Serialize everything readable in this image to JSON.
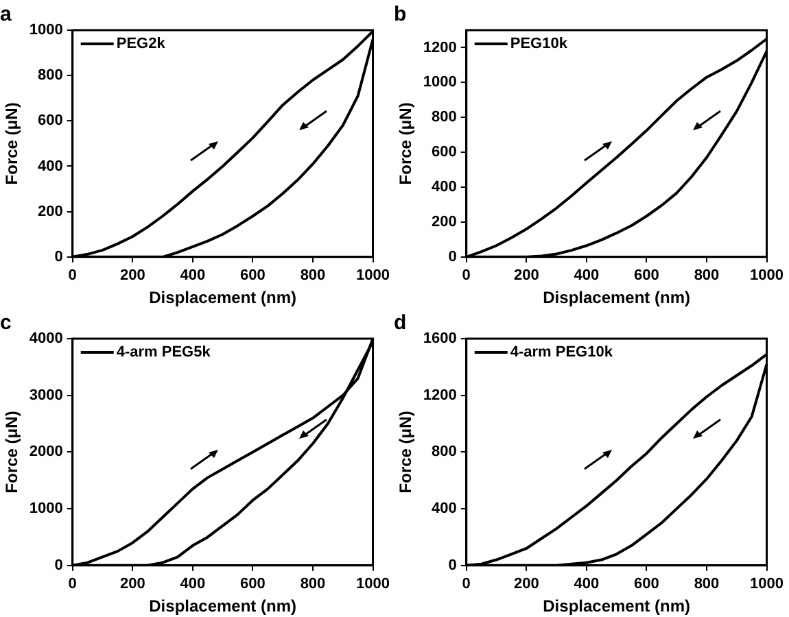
{
  "chart_data": [
    {
      "type": "line",
      "title": "a",
      "xlabel": "Displacement (nm)",
      "ylabel": "Force (μN)",
      "xlim": [
        0,
        1000
      ],
      "xticks": [
        0,
        200,
        400,
        600,
        800,
        1000
      ],
      "ylim": [
        0,
        1000
      ],
      "yticks": [
        0,
        200,
        400,
        600,
        800,
        1000
      ],
      "legend": "top left",
      "grid": false,
      "series": [
        {
          "name": "PEG2k",
          "color": "#000000",
          "x": [
            0,
            50,
            100,
            150,
            200,
            250,
            300,
            350,
            400,
            450,
            500,
            550,
            600,
            650,
            700,
            750,
            800,
            850,
            900,
            950,
            1000
          ],
          "values": [
            0,
            12,
            30,
            58,
            90,
            132,
            180,
            233,
            290,
            343,
            400,
            462,
            525,
            597,
            670,
            727,
            780,
            825,
            870,
            930,
            995
          ]
        },
        {
          "color": "#000000",
          "x": [
            0,
            100,
            200,
            300,
            350,
            400,
            450,
            500,
            550,
            600,
            650,
            700,
            750,
            800,
            850,
            900,
            950,
            1000
          ],
          "values": [
            0,
            0,
            0,
            0,
            20,
            45,
            70,
            100,
            138,
            180,
            225,
            280,
            340,
            410,
            490,
            580,
            710,
            960
          ]
        }
      ]
    },
    {
      "type": "line",
      "title": "b",
      "xlabel": "Displacement (nm)",
      "ylabel": "Force (μN)",
      "xlim": [
        0,
        1000
      ],
      "xticks": [
        0,
        200,
        400,
        600,
        800,
        1000
      ],
      "ylim": [
        0,
        1300
      ],
      "yticks": [
        0,
        200,
        400,
        600,
        800,
        1000,
        1200
      ],
      "legend": "top left",
      "grid": false,
      "series": [
        {
          "name": "PEG10k",
          "color": "#000000",
          "x": [
            0,
            50,
            100,
            150,
            200,
            250,
            300,
            350,
            400,
            450,
            500,
            550,
            600,
            650,
            700,
            750,
            800,
            850,
            900,
            950,
            1000
          ],
          "values": [
            0,
            30,
            65,
            110,
            160,
            218,
            280,
            350,
            425,
            497,
            570,
            647,
            725,
            810,
            895,
            965,
            1030,
            1075,
            1125,
            1185,
            1250
          ]
        },
        {
          "color": "#000000",
          "x": [
            0,
            100,
            200,
            250,
            300,
            350,
            400,
            450,
            500,
            550,
            600,
            650,
            700,
            750,
            800,
            850,
            900,
            950,
            1000
          ],
          "values": [
            0,
            0,
            0,
            5,
            17,
            38,
            65,
            98,
            137,
            180,
            234,
            295,
            366,
            460,
            570,
            700,
            835,
            1000,
            1180
          ]
        }
      ]
    },
    {
      "type": "line",
      "title": "c",
      "xlabel": "Displacement (nm)",
      "ylabel": "Force (μN)",
      "xlim": [
        0,
        1000
      ],
      "xticks": [
        0,
        200,
        400,
        600,
        800,
        1000
      ],
      "ylim": [
        0,
        4000
      ],
      "yticks": [
        0,
        1000,
        2000,
        3000,
        4000
      ],
      "legend": "top left",
      "grid": false,
      "series": [
        {
          "name": "4-arm PEG5k",
          "color": "#000000",
          "x": [
            0,
            50,
            100,
            150,
            200,
            250,
            300,
            350,
            400,
            450,
            500,
            550,
            600,
            650,
            700,
            750,
            800,
            850,
            900,
            950,
            1000
          ],
          "values": [
            0,
            50,
            150,
            250,
            400,
            600,
            850,
            1100,
            1350,
            1550,
            1700,
            1850,
            2000,
            2150,
            2300,
            2450,
            2600,
            2800,
            3000,
            3300,
            4000
          ]
        },
        {
          "color": "#000000",
          "x": [
            0,
            100,
            200,
            250,
            300,
            350,
            400,
            450,
            500,
            550,
            600,
            650,
            700,
            750,
            800,
            850,
            900,
            950,
            1000
          ],
          "values": [
            0,
            0,
            0,
            0,
            50,
            150,
            350,
            500,
            700,
            900,
            1150,
            1350,
            1600,
            1850,
            2150,
            2500,
            2950,
            3450,
            3950
          ]
        }
      ]
    },
    {
      "type": "line",
      "title": "d",
      "xlabel": "Displacement (nm)",
      "ylabel": "Force (μN)",
      "xlim": [
        0,
        1000
      ],
      "xticks": [
        0,
        200,
        400,
        600,
        800,
        1000
      ],
      "ylim": [
        0,
        1600
      ],
      "yticks": [
        0,
        400,
        800,
        1200,
        1600
      ],
      "legend": "top left",
      "grid": false,
      "series": [
        {
          "name": "4-arm PEG10k",
          "color": "#000000",
          "x": [
            0,
            50,
            100,
            150,
            200,
            250,
            300,
            350,
            400,
            450,
            500,
            550,
            600,
            650,
            700,
            750,
            800,
            850,
            900,
            950,
            1000
          ],
          "values": [
            0,
            10,
            40,
            80,
            120,
            190,
            260,
            340,
            420,
            510,
            600,
            700,
            790,
            900,
            1000,
            1100,
            1190,
            1270,
            1340,
            1410,
            1490
          ]
        },
        {
          "color": "#000000",
          "x": [
            0,
            100,
            200,
            300,
            350,
            400,
            450,
            500,
            550,
            600,
            650,
            700,
            750,
            800,
            850,
            900,
            950,
            1000
          ],
          "values": [
            0,
            0,
            0,
            0,
            10,
            20,
            40,
            80,
            140,
            220,
            300,
            400,
            500,
            610,
            740,
            880,
            1050,
            1420
          ]
        }
      ]
    }
  ]
}
